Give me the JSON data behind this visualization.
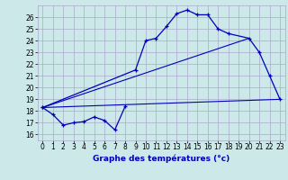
{
  "title": "Graphe des températures (°c)",
  "background_color": "#cce8e8",
  "grid_color": "#aaaacc",
  "line_color": "#0000bb",
  "xlim": [
    -0.5,
    23.5
  ],
  "ylim": [
    15.5,
    27.0
  ],
  "yticks": [
    16,
    17,
    18,
    19,
    20,
    21,
    22,
    23,
    24,
    25,
    26
  ],
  "xticks": [
    0,
    1,
    2,
    3,
    4,
    5,
    6,
    7,
    8,
    9,
    10,
    11,
    12,
    13,
    14,
    15,
    16,
    17,
    18,
    19,
    20,
    21,
    22,
    23
  ],
  "s1x": [
    0,
    1,
    2,
    3,
    4,
    5,
    6,
    7,
    8
  ],
  "s1y": [
    18.3,
    17.7,
    16.8,
    17.0,
    17.1,
    17.5,
    17.2,
    16.4,
    18.4
  ],
  "s2x": [
    0,
    9,
    10,
    11,
    12,
    13,
    14,
    15,
    16,
    17,
    18,
    20,
    21,
    22,
    23
  ],
  "s2y": [
    18.3,
    21.5,
    24.0,
    24.2,
    25.2,
    26.3,
    26.6,
    26.2,
    26.2,
    25.0,
    24.6,
    24.2,
    23.0,
    21.0,
    19.0
  ],
  "s3x": [
    0,
    23
  ],
  "s3y": [
    18.3,
    19.0
  ],
  "s4x": [
    0,
    20
  ],
  "s4y": [
    18.3,
    24.2
  ],
  "xlabel_fontsize": 6.5,
  "tick_fontsize": 5.5
}
